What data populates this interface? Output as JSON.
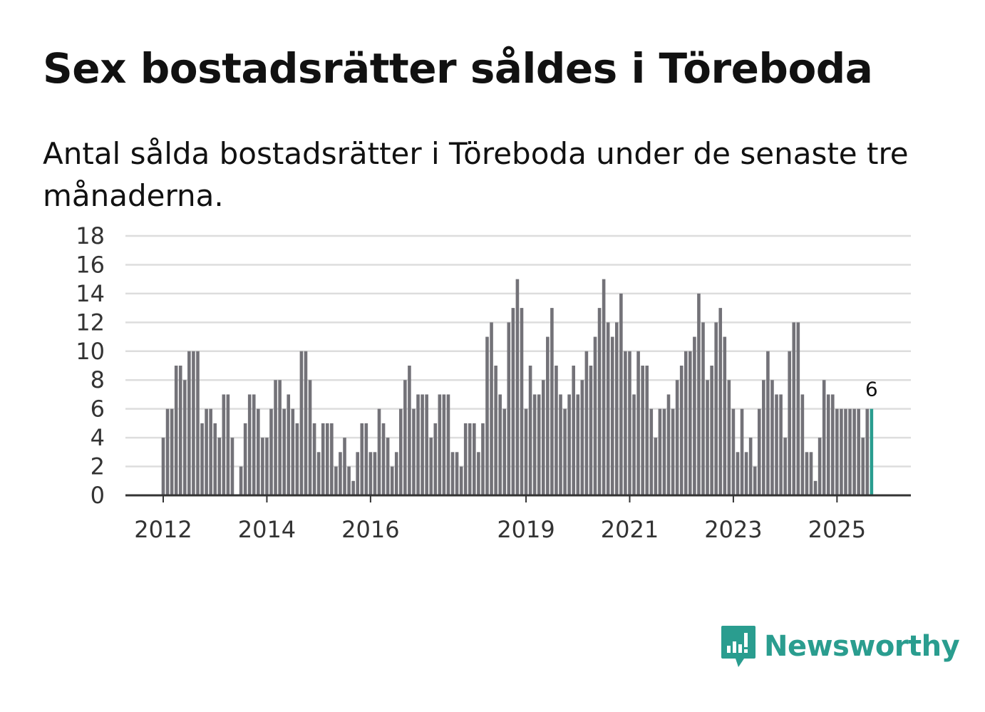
{
  "header": {
    "title": "Sex bostadsrätter såldes i Töreboda",
    "subtitle": "Antal sålda bostadsrätter i Töreboda under de senaste tre månaderna."
  },
  "brand": {
    "name": "Newsworthy",
    "icon": "newsworthy-logo-icon",
    "color": "#2a9d8f"
  },
  "chart_data": {
    "type": "bar",
    "title": "Sex bostadsrätter såldes i Töreboda",
    "subtitle": "Antal sålda bostadsrätter i Töreboda under de senaste tre månaderna.",
    "xlabel": "",
    "ylabel": "",
    "ylim": [
      0,
      18
    ],
    "yticks": [
      0,
      2,
      4,
      6,
      8,
      10,
      12,
      14,
      16,
      18
    ],
    "grid": true,
    "x_start": "2012-01",
    "x_tick_labels": [
      {
        "label": "2012",
        "index": 0
      },
      {
        "label": "2014",
        "index": 24
      },
      {
        "label": "2016",
        "index": 48
      },
      {
        "label": "2019",
        "index": 84
      },
      {
        "label": "2021",
        "index": 108
      },
      {
        "label": "2023",
        "index": 132
      },
      {
        "label": "2025",
        "index": 156
      }
    ],
    "bar_color": "#737278",
    "highlight_color": "#2a9d8f",
    "highlight_index": 164,
    "highlight_label": "6",
    "values": [
      4,
      6,
      6,
      9,
      9,
      8,
      10,
      10,
      10,
      5,
      6,
      6,
      5,
      4,
      7,
      7,
      4,
      0,
      2,
      5,
      7,
      7,
      6,
      4,
      4,
      6,
      8,
      8,
      6,
      7,
      6,
      5,
      10,
      10,
      8,
      5,
      3,
      5,
      5,
      5,
      2,
      3,
      4,
      2,
      1,
      3,
      5,
      5,
      3,
      3,
      6,
      5,
      4,
      2,
      3,
      6,
      8,
      9,
      6,
      7,
      7,
      7,
      4,
      5,
      7,
      7,
      7,
      3,
      3,
      2,
      5,
      5,
      5,
      3,
      5,
      11,
      12,
      9,
      7,
      6,
      12,
      13,
      15,
      13,
      6,
      9,
      7,
      7,
      8,
      11,
      13,
      9,
      7,
      6,
      7,
      9,
      7,
      8,
      10,
      9,
      11,
      13,
      15,
      12,
      11,
      12,
      14,
      10,
      10,
      7,
      10,
      9,
      9,
      6,
      4,
      6,
      6,
      7,
      6,
      8,
      9,
      10,
      10,
      11,
      14,
      12,
      8,
      9,
      12,
      13,
      11,
      8,
      6,
      3,
      6,
      3,
      4,
      2,
      6,
      8,
      10,
      8,
      7,
      7,
      4,
      10,
      12,
      12,
      7,
      3,
      3,
      1,
      4,
      8,
      7,
      7,
      6,
      6,
      6,
      6,
      6,
      6,
      4,
      6,
      6
    ]
  }
}
